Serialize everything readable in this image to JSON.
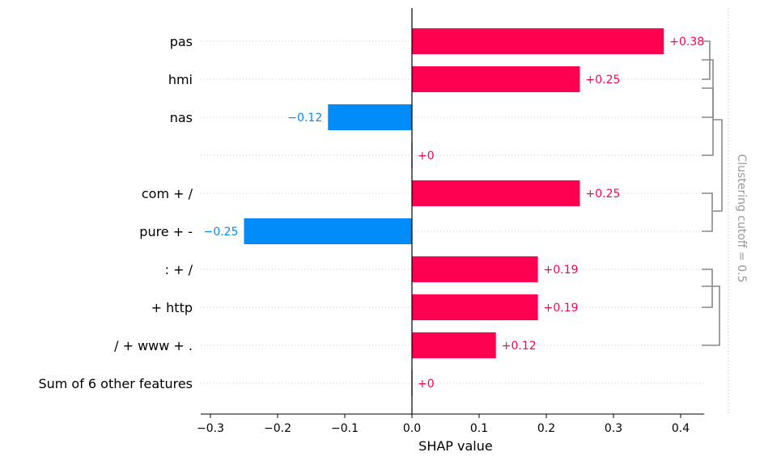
{
  "chart_data": {
    "type": "bar",
    "orientation": "horizontal",
    "xlabel": "SHAP value",
    "xlim": [
      -0.31,
      0.44
    ],
    "xticks": [
      -0.3,
      -0.2,
      -0.1,
      0.0,
      0.1,
      0.2,
      0.3,
      0.4
    ],
    "xtick_labels": [
      "−0.3",
      "−0.2",
      "−0.1",
      "0.0",
      "0.1",
      "0.2",
      "0.3",
      "0.4"
    ],
    "categories": [
      "pas",
      "hmi",
      "nas",
      "",
      "com + /",
      "pure + -",
      ": + /",
      "+ http",
      "/ + www + .",
      "Sum of 6 other features"
    ],
    "values": [
      0.375,
      0.25,
      -0.125,
      0.0,
      0.25,
      -0.25,
      0.1875,
      0.1875,
      0.125,
      0.0
    ],
    "value_labels": [
      "+0.38",
      "+0.25",
      "−0.12",
      "+0",
      "+0.25",
      "−0.25",
      "+0.19",
      "+0.19",
      "+0.12",
      "+0"
    ],
    "colors": {
      "positive": "#ff0051",
      "negative": "#008bfb",
      "zero": "#cccccc",
      "dendrogram": "#888888",
      "cutoff": "#bbbbbb"
    },
    "cutoff_label": "Clustering cutoff = 0.5",
    "grid": "horizontal-dotted"
  }
}
